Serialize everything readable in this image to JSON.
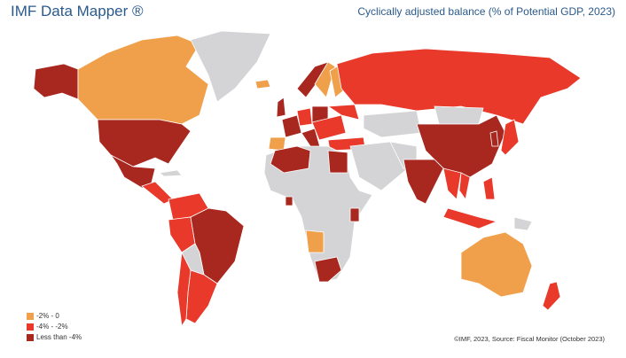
{
  "header": {
    "title": "IMF Data Mapper ®",
    "subtitle": "Cyclically adjusted balance (% of Potential GDP, 2023)"
  },
  "legend": {
    "items": [
      {
        "label": "-2% - 0",
        "color": "#f0a04b"
      },
      {
        "label": "-4% - -2%",
        "color": "#e8392b"
      },
      {
        "label": "Less than -4%",
        "color": "#a8271f"
      }
    ]
  },
  "source": "©IMF, 2023, Source: Fiscal Monitor (October 2023)"
}
